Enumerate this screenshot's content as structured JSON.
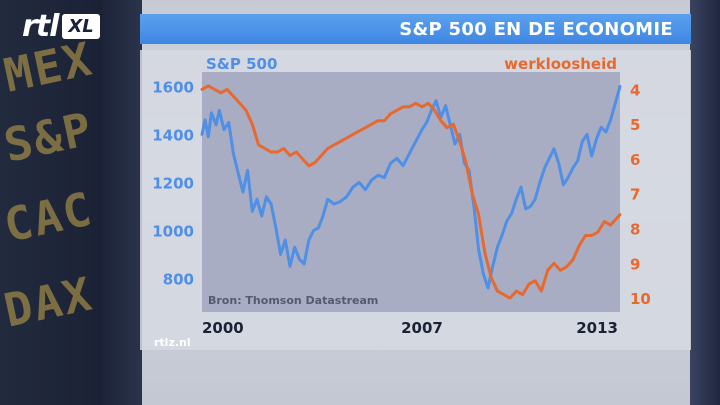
{
  "channel": {
    "logo_text": "rtl",
    "logo_badge": "XL",
    "watermark": "rtlz.nl"
  },
  "background_words": [
    "MEX",
    "S&P",
    "CAC",
    "DAX"
  ],
  "title": "S&P 500 EN DE ECONOMIE",
  "colors": {
    "sp500": "#4f8fe6",
    "unemployment": "#e8692d",
    "title_bar": "#4a90e8",
    "plot_bg": "#a8adc3"
  },
  "chart_data": {
    "type": "line",
    "title": "S&P 500 EN DE ECONOMIE",
    "source": "Bron: Thomson Datastream",
    "x_ticks": [
      "2000",
      "2007",
      "2013"
    ],
    "xlim": [
      2000,
      2013.3
    ],
    "left_axis": {
      "label": "S&P 500",
      "ticks": [
        800,
        1000,
        1200,
        1400,
        1600
      ],
      "ylim": [
        660,
        1660
      ]
    },
    "right_axis": {
      "label": "werkloosheid",
      "ticks": [
        4,
        5,
        6,
        7,
        8,
        9,
        10
      ],
      "inverted": true,
      "ylim": [
        3.5,
        10.4
      ]
    },
    "series": [
      {
        "name": "S&P 500",
        "axis": "left",
        "x": [
          2000.0,
          2000.1,
          2000.2,
          2000.3,
          2000.45,
          2000.55,
          2000.7,
          2000.85,
          2001.0,
          2001.15,
          2001.3,
          2001.45,
          2001.6,
          2001.75,
          2001.9,
          2002.05,
          2002.2,
          2002.35,
          2002.5,
          2002.65,
          2002.8,
          2002.95,
          2003.1,
          2003.25,
          2003.4,
          2003.55,
          2003.7,
          2003.85,
          2004.0,
          2004.2,
          2004.4,
          2004.6,
          2004.8,
          2005.0,
          2005.2,
          2005.4,
          2005.6,
          2005.8,
          2006.0,
          2006.2,
          2006.4,
          2006.6,
          2006.8,
          2007.0,
          2007.15,
          2007.3,
          2007.45,
          2007.6,
          2007.75,
          2007.9,
          2008.05,
          2008.2,
          2008.35,
          2008.5,
          2008.65,
          2008.8,
          2008.95,
          2009.1,
          2009.25,
          2009.4,
          2009.55,
          2009.7,
          2009.85,
          2010.0,
          2010.15,
          2010.3,
          2010.45,
          2010.6,
          2010.75,
          2010.9,
          2011.05,
          2011.2,
          2011.35,
          2011.5,
          2011.65,
          2011.8,
          2011.95,
          2012.1,
          2012.25,
          2012.4,
          2012.55,
          2012.7,
          2012.85,
          2013.0,
          2013.15,
          2013.3
        ],
        "values": [
          1400,
          1460,
          1390,
          1490,
          1440,
          1500,
          1420,
          1450,
          1320,
          1240,
          1160,
          1250,
          1080,
          1130,
          1060,
          1140,
          1110,
          1010,
          900,
          960,
          850,
          930,
          880,
          860,
          960,
          1000,
          1010,
          1060,
          1130,
          1110,
          1120,
          1140,
          1180,
          1200,
          1170,
          1210,
          1230,
          1220,
          1280,
          1300,
          1270,
          1320,
          1370,
          1420,
          1450,
          1500,
          1540,
          1470,
          1520,
          1440,
          1360,
          1400,
          1280,
          1250,
          1100,
          920,
          820,
          760,
          850,
          930,
          980,
          1040,
          1070,
          1130,
          1180,
          1090,
          1100,
          1130,
          1200,
          1260,
          1300,
          1340,
          1280,
          1190,
          1220,
          1260,
          1290,
          1370,
          1400,
          1310,
          1380,
          1430,
          1410,
          1460,
          1530,
          1600
        ]
      },
      {
        "name": "werkloosheid",
        "axis": "right",
        "x": [
          2000.0,
          2000.2,
          2000.4,
          2000.6,
          2000.8,
          2001.0,
          2001.2,
          2001.4,
          2001.6,
          2001.8,
          2002.0,
          2002.2,
          2002.4,
          2002.6,
          2002.8,
          2003.0,
          2003.2,
          2003.4,
          2003.6,
          2003.8,
          2004.0,
          2004.2,
          2004.4,
          2004.6,
          2004.8,
          2005.0,
          2005.2,
          2005.4,
          2005.6,
          2005.8,
          2006.0,
          2006.2,
          2006.4,
          2006.6,
          2006.8,
          2007.0,
          2007.2,
          2007.4,
          2007.6,
          2007.8,
          2008.0,
          2008.2,
          2008.4,
          2008.6,
          2008.8,
          2009.0,
          2009.2,
          2009.4,
          2009.6,
          2009.8,
          2010.0,
          2010.2,
          2010.4,
          2010.6,
          2010.8,
          2011.0,
          2011.2,
          2011.4,
          2011.6,
          2011.8,
          2012.0,
          2012.2,
          2012.4,
          2012.6,
          2012.8,
          2013.0,
          2013.2,
          2013.3
        ],
        "values": [
          4.0,
          3.9,
          4.0,
          4.1,
          4.0,
          4.2,
          4.4,
          4.6,
          5.0,
          5.6,
          5.7,
          5.8,
          5.8,
          5.7,
          5.9,
          5.8,
          6.0,
          6.2,
          6.1,
          5.9,
          5.7,
          5.6,
          5.5,
          5.4,
          5.3,
          5.2,
          5.1,
          5.0,
          4.9,
          4.9,
          4.7,
          4.6,
          4.5,
          4.5,
          4.4,
          4.5,
          4.4,
          4.6,
          4.9,
          5.1,
          5.0,
          5.5,
          6.1,
          7.0,
          7.6,
          8.7,
          9.4,
          9.8,
          9.9,
          10.0,
          9.8,
          9.9,
          9.6,
          9.5,
          9.8,
          9.2,
          9.0,
          9.2,
          9.1,
          8.9,
          8.5,
          8.2,
          8.2,
          8.1,
          7.8,
          7.9,
          7.7,
          7.6
        ]
      }
    ]
  }
}
